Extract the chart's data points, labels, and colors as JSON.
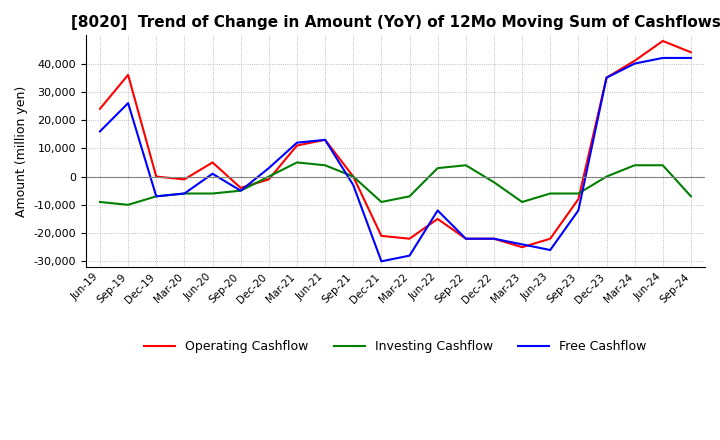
{
  "title": "[8020]  Trend of Change in Amount (YoY) of 12Mo Moving Sum of Cashflows",
  "ylabel": "Amount (million yen)",
  "ylim": [
    -32000,
    50000
  ],
  "yticks": [
    -30000,
    -20000,
    -10000,
    0,
    10000,
    20000,
    30000,
    40000
  ],
  "background_color": "#ffffff",
  "grid_color": "#aaaaaa",
  "dates": [
    "Jun-19",
    "Sep-19",
    "Dec-19",
    "Mar-20",
    "Jun-20",
    "Sep-20",
    "Dec-20",
    "Mar-21",
    "Jun-21",
    "Sep-21",
    "Dec-21",
    "Mar-22",
    "Jun-22",
    "Sep-22",
    "Dec-22",
    "Mar-23",
    "Jun-23",
    "Sep-23",
    "Dec-23",
    "Mar-24",
    "Jun-24",
    "Sep-24"
  ],
  "operating": [
    24000,
    36000,
    0,
    -1000,
    5000,
    -4000,
    -1000,
    11000,
    13000,
    0,
    -21000,
    -22000,
    -15000,
    -22000,
    -22000,
    -25000,
    -22000,
    -8000,
    35000,
    41000,
    48000,
    44000
  ],
  "investing": [
    -9000,
    -10000,
    -7000,
    -6000,
    -6000,
    -5000,
    0,
    5000,
    4000,
    0,
    -9000,
    -7000,
    3000,
    4000,
    -2000,
    -9000,
    -6000,
    -6000,
    0,
    4000,
    4000,
    -7000
  ],
  "free": [
    16000,
    26000,
    -7000,
    -6000,
    1000,
    -5000,
    3000,
    12000,
    13000,
    -3000,
    -30000,
    -28000,
    -12000,
    -22000,
    -22000,
    -24000,
    -26000,
    -12000,
    35000,
    40000,
    42000,
    42000
  ],
  "operating_color": "#ff0000",
  "investing_color": "#008000",
  "free_color": "#0000ff"
}
